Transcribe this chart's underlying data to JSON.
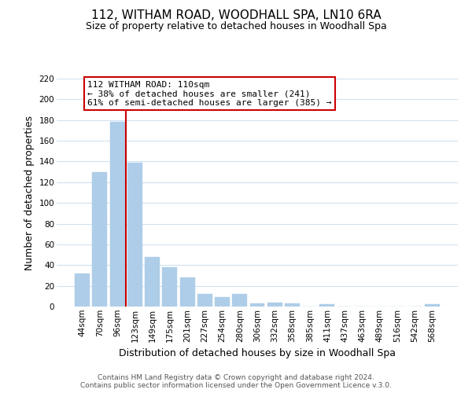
{
  "title": "112, WITHAM ROAD, WOODHALL SPA, LN10 6RA",
  "subtitle": "Size of property relative to detached houses in Woodhall Spa",
  "xlabel": "Distribution of detached houses by size in Woodhall Spa",
  "ylabel": "Number of detached properties",
  "bar_labels": [
    "44sqm",
    "70sqm",
    "96sqm",
    "123sqm",
    "149sqm",
    "175sqm",
    "201sqm",
    "227sqm",
    "254sqm",
    "280sqm",
    "306sqm",
    "332sqm",
    "358sqm",
    "385sqm",
    "411sqm",
    "437sqm",
    "463sqm",
    "489sqm",
    "516sqm",
    "542sqm",
    "568sqm"
  ],
  "bar_values": [
    32,
    130,
    178,
    139,
    48,
    38,
    28,
    12,
    9,
    12,
    3,
    4,
    3,
    0,
    2,
    0,
    0,
    0,
    0,
    0,
    2
  ],
  "bar_color": "#aecde8",
  "bar_edge_color": "#aecde8",
  "vline_color": "#cc0000",
  "vline_x_index": 2,
  "annotation_title": "112 WITHAM ROAD: 110sqm",
  "annotation_line1": "← 38% of detached houses are smaller (241)",
  "annotation_line2": "61% of semi-detached houses are larger (385) →",
  "annotation_box_color": "#ffffff",
  "annotation_box_edge": "#cc0000",
  "ylim": [
    0,
    220
  ],
  "yticks": [
    0,
    20,
    40,
    60,
    80,
    100,
    120,
    140,
    160,
    180,
    200,
    220
  ],
  "footer1": "Contains HM Land Registry data © Crown copyright and database right 2024.",
  "footer2": "Contains public sector information licensed under the Open Government Licence v.3.0.",
  "bg_color": "#ffffff",
  "grid_color": "#cfe2f3",
  "title_fontsize": 11,
  "subtitle_fontsize": 9,
  "axis_label_fontsize": 9,
  "tick_fontsize": 7.5,
  "annotation_fontsize": 8,
  "footer_fontsize": 6.5
}
